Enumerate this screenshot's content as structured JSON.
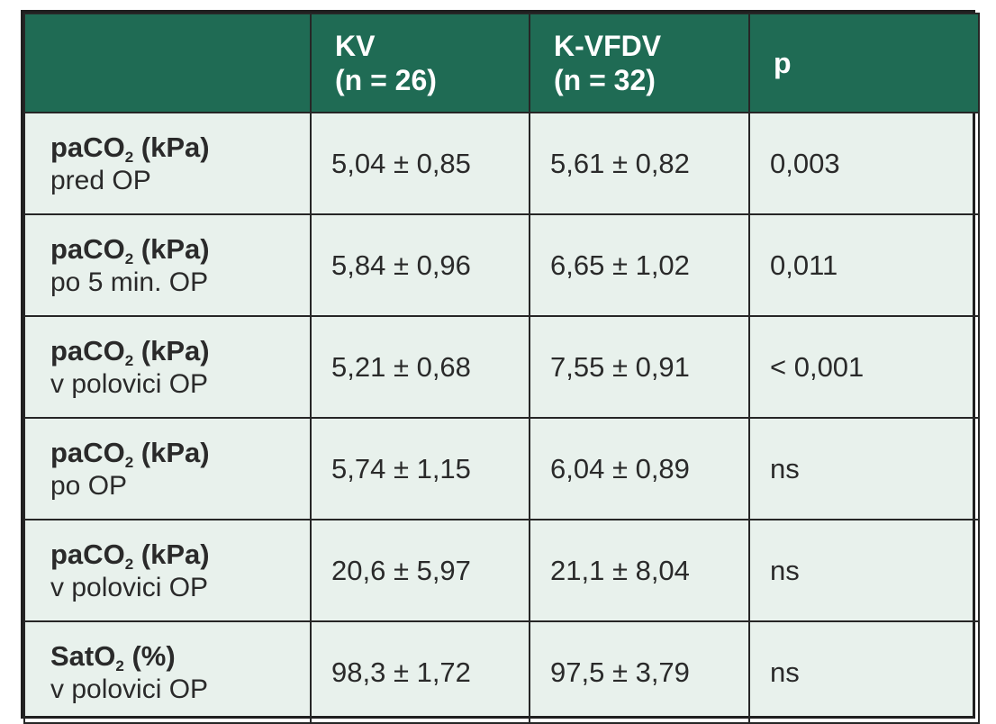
{
  "header": {
    "col1": "",
    "col2_line1": "KV",
    "col2_line2": "(n = 26)",
    "col3_line1": "K-VFDV",
    "col3_line2": "(n = 32)",
    "col4": "p"
  },
  "rows": [
    {
      "label_base": "paCO",
      "label_sub": "2",
      "label_unit": " (kPa)",
      "sublabel": "pred OP",
      "kv": "5,04 ± 0,85",
      "kvfdv": "5,61 ± 0,82",
      "p": "0,003"
    },
    {
      "label_base": "paCO",
      "label_sub": "2",
      "label_unit": " (kPa)",
      "sublabel": "po 5 min. OP",
      "kv": "5,84 ± 0,96",
      "kvfdv": "6,65 ± 1,02",
      "p": "0,011"
    },
    {
      "label_base": "paCO",
      "label_sub": "2",
      "label_unit": " (kPa)",
      "sublabel": "v polovici OP",
      "kv": "5,21 ± 0,68",
      "kvfdv": "7,55 ± 0,91",
      "p": "< 0,001"
    },
    {
      "label_base": "paCO",
      "label_sub": "2",
      "label_unit": " (kPa)",
      "sublabel": "po OP",
      "kv": "5,74 ± 1,15",
      "kvfdv": "6,04 ± 0,89",
      "p": "ns"
    },
    {
      "label_base": "paCO",
      "label_sub": "2",
      "label_unit": " (kPa)",
      "sublabel": "v polovici OP",
      "kv": "20,6 ± 5,97",
      "kvfdv": "21,1 ± 8,04",
      "p": "ns"
    },
    {
      "label_base": "SatO",
      "label_sub": "2",
      "label_unit": " (%)",
      "sublabel": "v polovici OP",
      "kv": "98,3 ± 1,72",
      "kvfdv": "97,5 ± 3,79",
      "p": "ns"
    }
  ],
  "colors": {
    "header_bg": "#1f6b54",
    "cell_bg": "#e8f1ec",
    "border": "#262626"
  }
}
